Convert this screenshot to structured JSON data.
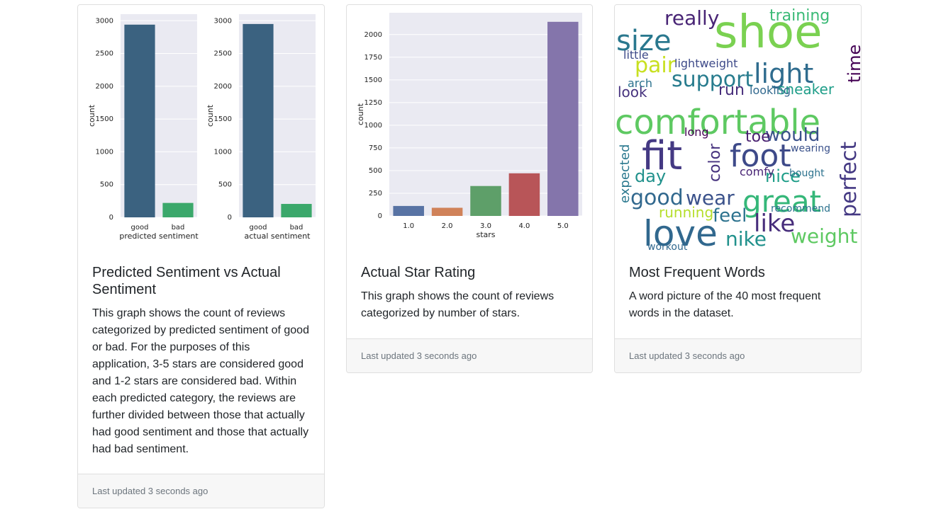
{
  "cards": [
    {
      "title": "Predicted Sentiment vs Actual Sentiment",
      "text": "This graph shows the count of reviews categorized by predicted sentiment of good or bad. For the purposes of this application, 3-5 stars are considered good and 1-2 stars are considered bad. Within each predicted category, the reviews are further divided between those that actually had good sentiment and those that actually had bad sentiment.",
      "footer": "Last updated 3 seconds ago"
    },
    {
      "title": "Actual Star Rating",
      "text": "This graph shows the count of reviews categorized by number of stars.",
      "footer": "Last updated 3 seconds ago"
    },
    {
      "title": "Most Frequent Words",
      "text": "A word picture of the 40 most frequent words in the dataset.",
      "footer": "Last updated 3 seconds ago"
    }
  ],
  "chart_data": [
    {
      "type": "bar",
      "categories": [
        "good",
        "bad"
      ],
      "values": [
        2940,
        220
      ],
      "xlabel": "predicted sentiment",
      "ylabel": "count",
      "ylim": [
        0,
        3100
      ],
      "yticks": [
        0,
        500,
        1000,
        1500,
        2000,
        2500,
        3000
      ],
      "colors": [
        "#3b6280",
        "#3ba86b"
      ],
      "grid": true
    },
    {
      "type": "bar",
      "categories": [
        "good",
        "bad"
      ],
      "values": [
        2950,
        205
      ],
      "xlabel": "actual sentiment",
      "ylabel": "count",
      "ylim": [
        0,
        3100
      ],
      "yticks": [
        0,
        500,
        1000,
        1500,
        2000,
        2500,
        3000
      ],
      "colors": [
        "#3b6280",
        "#3ba86b"
      ],
      "grid": true
    },
    {
      "type": "bar",
      "categories": [
        "1.0",
        "2.0",
        "3.0",
        "4.0",
        "5.0"
      ],
      "values": [
        110,
        90,
        330,
        470,
        2140
      ],
      "xlabel": "stars",
      "ylabel": "count",
      "ylim": [
        0,
        2240
      ],
      "yticks": [
        0,
        250,
        500,
        750,
        1000,
        1250,
        1500,
        1750,
        2000
      ],
      "colors": [
        "#5873a4",
        "#d08259",
        "#5e9f69",
        "#b85558",
        "#8475ab"
      ],
      "grid": true
    }
  ],
  "wordcloud": {
    "words": [
      {
        "text": "shoe",
        "color": "#7ad151"
      },
      {
        "text": "comfortable",
        "color": "#5ec962"
      },
      {
        "text": "size",
        "color": "#2a788e"
      },
      {
        "text": "love",
        "color": "#31688e"
      },
      {
        "text": "great",
        "color": "#35b779"
      },
      {
        "text": "fit",
        "color": "#443983"
      },
      {
        "text": "foot",
        "color": "#3e4a89"
      },
      {
        "text": "like",
        "color": "#472d7b"
      },
      {
        "text": "light",
        "color": "#2f6c8e"
      },
      {
        "text": "support",
        "color": "#287c8e"
      },
      {
        "text": "really",
        "color": "#482475"
      },
      {
        "text": "pair",
        "color": "#c8e020"
      },
      {
        "text": "wear",
        "color": "#3b528b"
      },
      {
        "text": "good",
        "color": "#31688e"
      },
      {
        "text": "nike",
        "color": "#21918c"
      },
      {
        "text": "weight",
        "color": "#5ec962"
      },
      {
        "text": "perfect",
        "color": "#443983"
      },
      {
        "text": "time",
        "color": "#440154"
      },
      {
        "text": "training",
        "color": "#3aba76"
      },
      {
        "text": "would",
        "color": "#3b528b"
      },
      {
        "text": "nice",
        "color": "#1f9e89"
      },
      {
        "text": "feel",
        "color": "#2c728e"
      },
      {
        "text": "running",
        "color": "#b5de2b"
      },
      {
        "text": "color",
        "color": "#46327e"
      },
      {
        "text": "sneaker",
        "color": "#1f9e89"
      },
      {
        "text": "day",
        "color": "#21918c"
      },
      {
        "text": "run",
        "color": "#472d7b"
      },
      {
        "text": "look",
        "color": "#46327e"
      },
      {
        "text": "toe",
        "color": "#481f70"
      },
      {
        "text": "expected",
        "color": "#2a788e"
      },
      {
        "text": "lightweight",
        "color": "#3e4a89"
      },
      {
        "text": "looking",
        "color": "#31688e"
      },
      {
        "text": "little",
        "color": "#3e4a89"
      },
      {
        "text": "comfy",
        "color": "#482475"
      },
      {
        "text": "arch",
        "color": "#2c728e"
      },
      {
        "text": "long",
        "color": "#440154"
      },
      {
        "text": "wearing",
        "color": "#3b528b"
      },
      {
        "text": "bought",
        "color": "#2c728e"
      },
      {
        "text": "workout",
        "color": "#31688e"
      },
      {
        "text": "recommend",
        "color": "#2c728e"
      }
    ]
  }
}
